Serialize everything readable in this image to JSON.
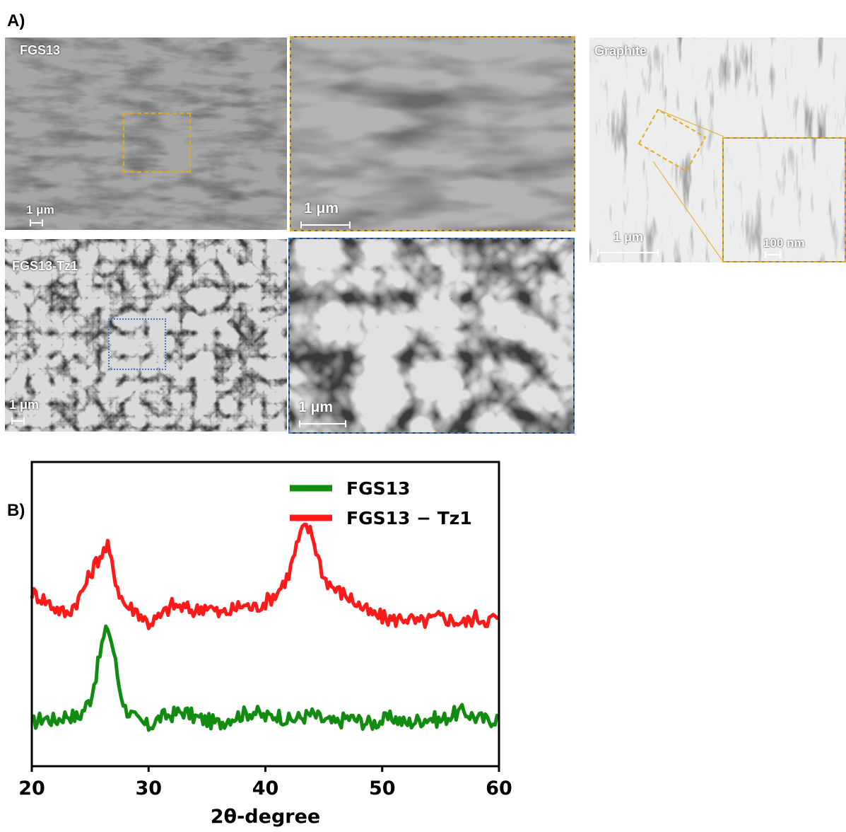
{
  "figure": {
    "panel_a_label": "A)",
    "panel_b_label": "B)"
  },
  "sem_images": {
    "fgs13": {
      "label": "FGS13",
      "scale": "1 μm"
    },
    "fgs13_zoom": {
      "scale": "1 μm"
    },
    "fgs13_tz1": {
      "label": "FGS13-Tz1",
      "scale": "1 μm"
    },
    "fgs13_tz1_zoom": {
      "scale": "1 μm"
    },
    "graphite": {
      "label": "Graphite",
      "scale": "1 μm",
      "inset_scale": "100 nm"
    }
  },
  "colors": {
    "orange_box": "#e8a81c",
    "blue_box": "#4a78c9",
    "fgs13": "#118c11",
    "fgs13_tz1": "#ff1a1a"
  },
  "chart_data": {
    "type": "line",
    "xlabel": "2θ-degree",
    "ylabel": "",
    "xlim": [
      20,
      60
    ],
    "xticks": [
      20,
      30,
      40,
      50,
      60
    ],
    "legend_position": "top-right",
    "series": [
      {
        "name": "FGS13",
        "color": "#118c11",
        "x": [
          20,
          21,
          22,
          23,
          24,
          25,
          25.5,
          26,
          26.5,
          27,
          27.5,
          28,
          29,
          30,
          31,
          32,
          33,
          34,
          35,
          36,
          37,
          38,
          39,
          40,
          41,
          42,
          43,
          44,
          45,
          46,
          47,
          48,
          49,
          50,
          51,
          52,
          53,
          54,
          55,
          56,
          57,
          58,
          59,
          60
        ],
        "y": [
          0.14,
          0.16,
          0.15,
          0.17,
          0.16,
          0.22,
          0.3,
          0.4,
          0.46,
          0.38,
          0.26,
          0.19,
          0.15,
          0.13,
          0.16,
          0.17,
          0.18,
          0.16,
          0.15,
          0.14,
          0.16,
          0.17,
          0.18,
          0.16,
          0.17,
          0.15,
          0.16,
          0.17,
          0.15,
          0.14,
          0.16,
          0.15,
          0.14,
          0.15,
          0.16,
          0.14,
          0.15,
          0.16,
          0.15,
          0.17,
          0.18,
          0.16,
          0.15,
          0.16
        ]
      },
      {
        "name": "FGS13 − Tz1",
        "color": "#ff1a1a",
        "x": [
          20,
          21,
          22,
          23,
          24,
          25,
          25.5,
          26,
          26.5,
          27,
          27.5,
          28,
          29,
          30,
          31,
          32,
          33,
          34,
          35,
          36,
          37,
          38,
          39,
          40,
          41,
          42,
          42.5,
          43,
          43.5,
          44,
          44.5,
          45,
          46,
          47,
          48,
          49,
          50,
          51,
          52,
          53,
          54,
          55,
          56,
          57,
          58,
          59,
          60
        ],
        "y": [
          0.57,
          0.55,
          0.52,
          0.5,
          0.55,
          0.63,
          0.67,
          0.7,
          0.72,
          0.64,
          0.57,
          0.53,
          0.51,
          0.47,
          0.49,
          0.53,
          0.52,
          0.51,
          0.53,
          0.5,
          0.51,
          0.53,
          0.52,
          0.54,
          0.57,
          0.63,
          0.7,
          0.76,
          0.79,
          0.76,
          0.69,
          0.62,
          0.58,
          0.56,
          0.53,
          0.5,
          0.49,
          0.48,
          0.49,
          0.47,
          0.48,
          0.49,
          0.48,
          0.47,
          0.49,
          0.48,
          0.49
        ]
      }
    ]
  }
}
